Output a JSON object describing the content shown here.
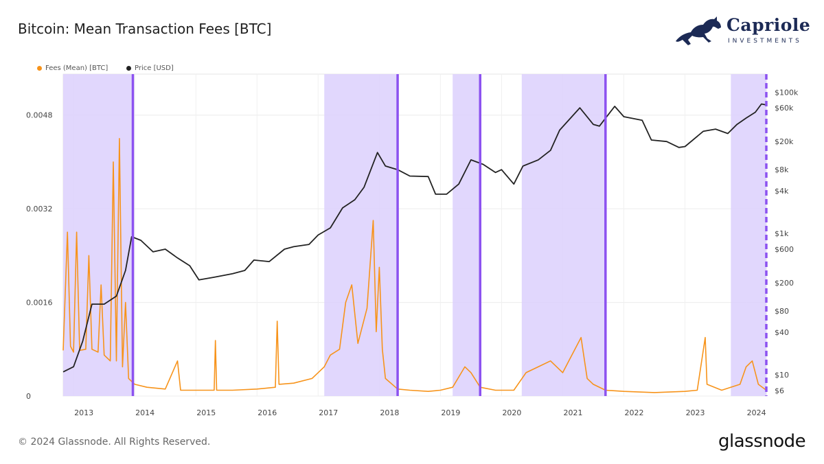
{
  "title": "Bitcoin: Mean Transaction Fees [BTC]",
  "brand": {
    "name": "Capriole",
    "sub": "INVESTMENTS",
    "icon": "horse-logo"
  },
  "footer": {
    "copyright": "© 2024 Glassnode. All Rights Reserved.",
    "provider": "glassnode"
  },
  "chart_data": {
    "type": "line",
    "title": "Bitcoin: Mean Transaction Fees [BTC]",
    "legend": [
      {
        "name": "Fees (Mean) [BTC]",
        "color": "#f7931a"
      },
      {
        "name": "Price [USD]",
        "color": "#222222"
      }
    ],
    "legend_placement": "top-left",
    "x_ticks": [
      "2013",
      "2014",
      "2015",
      "2016",
      "2017",
      "2018",
      "2019",
      "2020",
      "2021",
      "2022",
      "2023",
      "2024"
    ],
    "xlim": [
      2012.83,
      2024.33
    ],
    "y_left": {
      "ticks": [
        "0",
        "0.0016",
        "0.0032",
        "0.0048"
      ],
      "tick_values": [
        0,
        0.0016,
        0.0032,
        0.0048
      ],
      "ylim": [
        0,
        0.0055
      ]
    },
    "y_right": {
      "scale": "log",
      "ticks": [
        "$6",
        "$10",
        "$40",
        "$80",
        "$200",
        "$600",
        "$1k",
        "$4k",
        "$8k",
        "$20k",
        "$60k",
        "$100k"
      ],
      "tick_values": [
        6,
        10,
        40,
        80,
        200,
        600,
        1000,
        4000,
        8000,
        20000,
        60000,
        100000
      ],
      "ylim": [
        5,
        180000
      ]
    },
    "grid": true,
    "shaded_periods": [
      [
        2012.83,
        2013.97
      ],
      [
        2017.1,
        2018.3
      ],
      [
        2019.2,
        2019.65
      ],
      [
        2020.33,
        2021.7
      ],
      [
        2023.75,
        2024.33
      ]
    ],
    "vertical_markers": [
      2013.97,
      2018.3,
      2019.65,
      2021.7,
      2024.33
    ],
    "series": [
      {
        "name": "Fees (Mean) [BTC]",
        "color": "#f7931a",
        "axis": "left",
        "points": [
          [
            2012.83,
            0.00078
          ],
          [
            2012.9,
            0.0028
          ],
          [
            2012.95,
            0.00085
          ],
          [
            2013.0,
            0.00075
          ],
          [
            2013.05,
            0.0028
          ],
          [
            2013.1,
            0.00078
          ],
          [
            2013.2,
            0.0008
          ],
          [
            2013.25,
            0.0024
          ],
          [
            2013.3,
            0.0008
          ],
          [
            2013.4,
            0.00075
          ],
          [
            2013.45,
            0.0019
          ],
          [
            2013.5,
            0.0007
          ],
          [
            2013.6,
            0.0006
          ],
          [
            2013.65,
            0.004
          ],
          [
            2013.7,
            0.0006
          ],
          [
            2013.75,
            0.0044
          ],
          [
            2013.8,
            0.0005
          ],
          [
            2013.85,
            0.0016
          ],
          [
            2013.9,
            0.0003
          ],
          [
            2014.0,
            0.0002
          ],
          [
            2014.2,
            0.00015
          ],
          [
            2014.5,
            0.00012
          ],
          [
            2014.7,
            0.0006
          ],
          [
            2014.75,
            0.0001
          ],
          [
            2015.0,
            0.0001
          ],
          [
            2015.3,
            0.0001
          ],
          [
            2015.32,
            0.00095
          ],
          [
            2015.34,
            0.0001
          ],
          [
            2015.6,
            0.0001
          ],
          [
            2016.0,
            0.00012
          ],
          [
            2016.3,
            0.00015
          ],
          [
            2016.33,
            0.00128
          ],
          [
            2016.36,
            0.0002
          ],
          [
            2016.6,
            0.00022
          ],
          [
            2016.9,
            0.0003
          ],
          [
            2017.1,
            0.0005
          ],
          [
            2017.2,
            0.0007
          ],
          [
            2017.35,
            0.0008
          ],
          [
            2017.45,
            0.0016
          ],
          [
            2017.55,
            0.0019
          ],
          [
            2017.65,
            0.0009
          ],
          [
            2017.8,
            0.0015
          ],
          [
            2017.9,
            0.003
          ],
          [
            2017.95,
            0.0011
          ],
          [
            2018.0,
            0.0022
          ],
          [
            2018.05,
            0.0008
          ],
          [
            2018.1,
            0.0003
          ],
          [
            2018.3,
            0.00012
          ],
          [
            2018.5,
            0.0001
          ],
          [
            2018.8,
            8e-05
          ],
          [
            2019.0,
            0.0001
          ],
          [
            2019.2,
            0.00015
          ],
          [
            2019.4,
            0.0005
          ],
          [
            2019.5,
            0.0004
          ],
          [
            2019.65,
            0.00015
          ],
          [
            2019.9,
            0.0001
          ],
          [
            2020.2,
            0.0001
          ],
          [
            2020.4,
            0.0004
          ],
          [
            2020.6,
            0.0005
          ],
          [
            2020.8,
            0.0006
          ],
          [
            2021.0,
            0.0004
          ],
          [
            2021.1,
            0.0006
          ],
          [
            2021.3,
            0.001
          ],
          [
            2021.4,
            0.0003
          ],
          [
            2021.5,
            0.0002
          ],
          [
            2021.7,
            0.0001
          ],
          [
            2022.0,
            8e-05
          ],
          [
            2022.5,
            6e-05
          ],
          [
            2023.0,
            8e-05
          ],
          [
            2023.2,
            0.0001
          ],
          [
            2023.33,
            0.001
          ],
          [
            2023.36,
            0.0002
          ],
          [
            2023.6,
            0.0001
          ],
          [
            2023.9,
            0.0002
          ],
          [
            2024.0,
            0.0005
          ],
          [
            2024.1,
            0.0006
          ],
          [
            2024.2,
            0.0002
          ],
          [
            2024.33,
            0.0001
          ]
        ]
      },
      {
        "name": "Price [USD]",
        "color": "#222222",
        "axis": "right",
        "points": [
          [
            2012.83,
            11
          ],
          [
            2013.0,
            13
          ],
          [
            2013.15,
            30
          ],
          [
            2013.3,
            100
          ],
          [
            2013.5,
            100
          ],
          [
            2013.7,
            130
          ],
          [
            2013.85,
            300
          ],
          [
            2013.95,
            900
          ],
          [
            2014.1,
            800
          ],
          [
            2014.3,
            550
          ],
          [
            2014.5,
            600
          ],
          [
            2014.7,
            450
          ],
          [
            2014.9,
            350
          ],
          [
            2015.05,
            220
          ],
          [
            2015.3,
            240
          ],
          [
            2015.6,
            270
          ],
          [
            2015.8,
            300
          ],
          [
            2015.95,
            420
          ],
          [
            2016.2,
            400
          ],
          [
            2016.45,
            600
          ],
          [
            2016.6,
            650
          ],
          [
            2016.85,
            700
          ],
          [
            2017.0,
            950
          ],
          [
            2017.2,
            1200
          ],
          [
            2017.4,
            2300
          ],
          [
            2017.6,
            3000
          ],
          [
            2017.75,
            4500
          ],
          [
            2017.97,
            14000
          ],
          [
            2018.1,
            9000
          ],
          [
            2018.3,
            8000
          ],
          [
            2018.5,
            6500
          ],
          [
            2018.8,
            6400
          ],
          [
            2018.92,
            3600
          ],
          [
            2019.1,
            3600
          ],
          [
            2019.3,
            5000
          ],
          [
            2019.5,
            11000
          ],
          [
            2019.7,
            9500
          ],
          [
            2019.9,
            7300
          ],
          [
            2020.0,
            8000
          ],
          [
            2020.2,
            5000
          ],
          [
            2020.35,
            9000
          ],
          [
            2020.6,
            11000
          ],
          [
            2020.8,
            15000
          ],
          [
            2020.95,
            29000
          ],
          [
            2021.28,
            60000
          ],
          [
            2021.5,
            35000
          ],
          [
            2021.6,
            33000
          ],
          [
            2021.85,
            63000
          ],
          [
            2022.0,
            45000
          ],
          [
            2022.3,
            40000
          ],
          [
            2022.45,
            21000
          ],
          [
            2022.7,
            20000
          ],
          [
            2022.9,
            16500
          ],
          [
            2023.0,
            17000
          ],
          [
            2023.3,
            28000
          ],
          [
            2023.5,
            30000
          ],
          [
            2023.7,
            26000
          ],
          [
            2023.85,
            35000
          ],
          [
            2024.0,
            43000
          ],
          [
            2024.15,
            52000
          ],
          [
            2024.25,
            68000
          ],
          [
            2024.33,
            66000
          ]
        ]
      }
    ]
  }
}
